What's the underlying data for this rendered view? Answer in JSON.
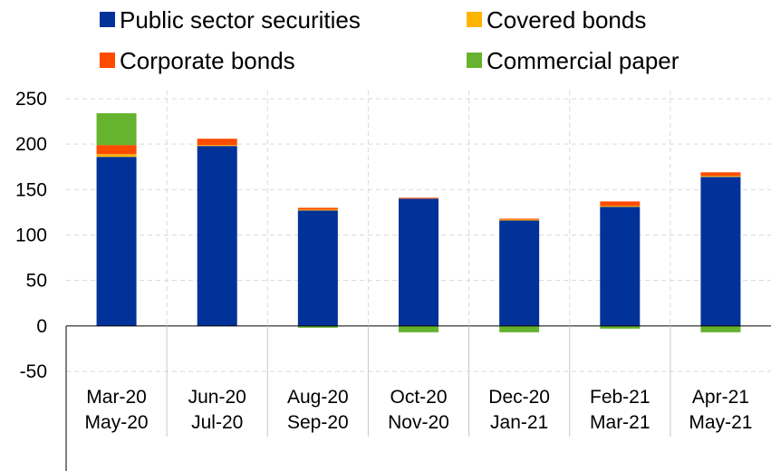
{
  "chart_data": {
    "type": "bar",
    "stacked": true,
    "categories": [
      [
        "Mar-20",
        "May-20"
      ],
      [
        "Jun-20",
        "Jul-20"
      ],
      [
        "Aug-20",
        "Sep-20"
      ],
      [
        "Oct-20",
        "Nov-20"
      ],
      [
        "Dec-20",
        "Jan-21"
      ],
      [
        "Feb-21",
        "Mar-21"
      ],
      [
        "Apr-21",
        "May-21"
      ]
    ],
    "series": [
      {
        "name": "Public sector securities",
        "color": "#003299",
        "values": [
          186,
          198,
          127,
          140,
          116,
          131,
          164
        ]
      },
      {
        "name": "Covered bonds",
        "color": "#FFB400",
        "values": [
          3,
          1,
          1,
          0,
          1,
          1,
          1
        ]
      },
      {
        "name": "Corporate bonds",
        "color": "#FF4B00",
        "values": [
          10,
          7,
          2,
          1,
          1,
          5,
          4
        ]
      },
      {
        "name": "Commercial paper",
        "color": "#65B32E",
        "values": [
          35,
          0,
          -2,
          -7,
          -7,
          -3,
          -7
        ]
      }
    ],
    "ylim": [
      -50,
      250
    ],
    "yticks": [
      -50,
      0,
      50,
      100,
      150,
      200,
      250
    ],
    "grid": true,
    "legend_position": "top",
    "title": "",
    "xlabel": "",
    "ylabel": ""
  }
}
